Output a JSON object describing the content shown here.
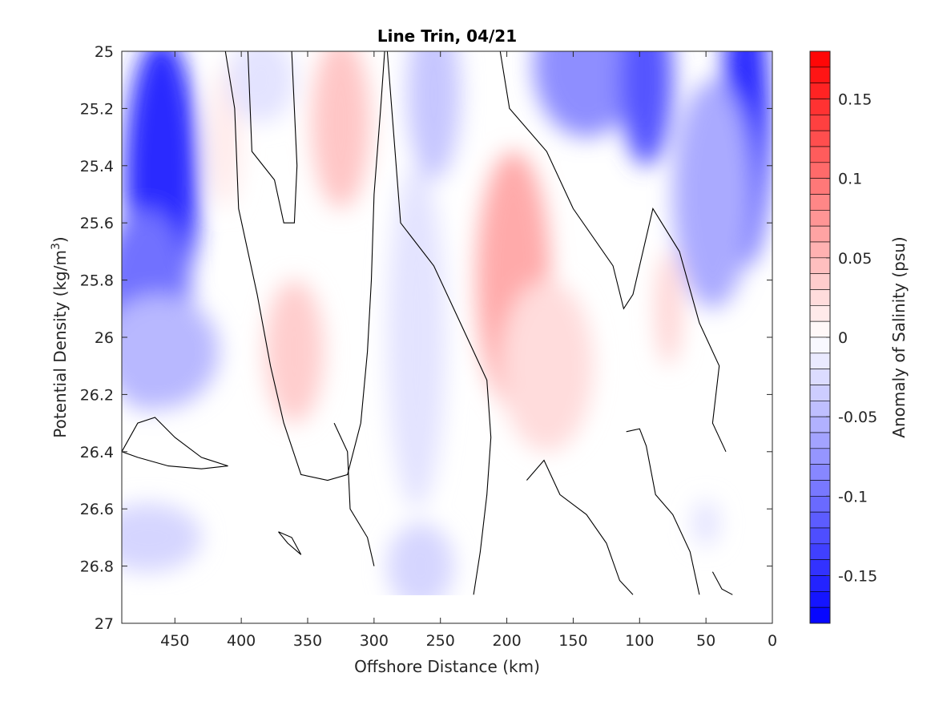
{
  "chart_data": {
    "type": "heatmap",
    "title": "Line Trin, 04/21",
    "xlabel": "Offshore Distance (km)",
    "ylabel": "Potential Density (kg/m",
    "ylabel_sup": "3",
    "ylabel_close": ")",
    "xlim": [
      490,
      0
    ],
    "ylim": [
      25,
      27
    ],
    "x_ticks": [
      450,
      400,
      350,
      300,
      250,
      200,
      150,
      100,
      50,
      0
    ],
    "y_ticks": [
      25,
      25.2,
      25.4,
      25.6,
      25.8,
      26,
      26.2,
      26.4,
      26.6,
      26.8,
      27
    ],
    "y_tick_labels": [
      "25",
      "25.2",
      "25.4",
      "25.6",
      "25.8",
      "26",
      "26.2",
      "26.4",
      "26.6",
      "26.8",
      "27"
    ],
    "colorbar": {
      "label": "Anomaly of Salinity (psu)",
      "range": [
        -0.18,
        0.18
      ],
      "levels": 36,
      "ticks": [
        0.15,
        0.1,
        0.05,
        0,
        -0.05,
        -0.1,
        -0.15
      ],
      "tick_labels": [
        "0.15",
        "0.1",
        "0.05",
        "0",
        "-0.05",
        "-0.1",
        "-0.15"
      ],
      "colors": {
        "negative": "#0000ff",
        "zero": "#ffffff",
        "positive": "#ff0000"
      }
    },
    "anomaly_features": [
      {
        "x": 460,
        "y": 25.45,
        "value": -0.15,
        "rx": 28,
        "ry": 0.5
      },
      {
        "x": 472,
        "y": 25.9,
        "value": -0.1,
        "rx": 35,
        "ry": 0.35
      },
      {
        "x": 462,
        "y": 26.05,
        "value": -0.05,
        "rx": 45,
        "ry": 0.2
      },
      {
        "x": 470,
        "y": 26.7,
        "value": -0.03,
        "rx": 40,
        "ry": 0.12
      },
      {
        "x": 412,
        "y": 25.3,
        "value": 0.015,
        "rx": 12,
        "ry": 0.25
      },
      {
        "x": 385,
        "y": 25.1,
        "value": -0.02,
        "rx": 25,
        "ry": 0.15
      },
      {
        "x": 325,
        "y": 25.25,
        "value": 0.04,
        "rx": 22,
        "ry": 0.3
      },
      {
        "x": 360,
        "y": 26.05,
        "value": 0.035,
        "rx": 22,
        "ry": 0.25
      },
      {
        "x": 255,
        "y": 25.15,
        "value": -0.04,
        "rx": 20,
        "ry": 0.3
      },
      {
        "x": 268,
        "y": 26.0,
        "value": -0.02,
        "rx": 22,
        "ry": 0.6
      },
      {
        "x": 265,
        "y": 26.8,
        "value": -0.03,
        "rx": 25,
        "ry": 0.15
      },
      {
        "x": 195,
        "y": 25.8,
        "value": 0.06,
        "rx": 28,
        "ry": 0.45
      },
      {
        "x": 170,
        "y": 26.1,
        "value": 0.025,
        "rx": 35,
        "ry": 0.3
      },
      {
        "x": 140,
        "y": 25.05,
        "value": -0.08,
        "rx": 40,
        "ry": 0.25
      },
      {
        "x": 95,
        "y": 25.1,
        "value": -0.12,
        "rx": 20,
        "ry": 0.3
      },
      {
        "x": 78,
        "y": 25.9,
        "value": 0.03,
        "rx": 10,
        "ry": 0.2
      },
      {
        "x": 20,
        "y": 25.25,
        "value": -0.15,
        "rx": 18,
        "ry": 0.5
      },
      {
        "x": 45,
        "y": 25.5,
        "value": -0.06,
        "rx": 30,
        "ry": 0.4
      },
      {
        "x": 50,
        "y": 26.65,
        "value": -0.02,
        "rx": 10,
        "ry": 0.08
      }
    ],
    "contours_zero": [
      [
        [
          412,
          25
        ],
        [
          405,
          25.2
        ],
        [
          402,
          25.55
        ],
        [
          388,
          25.85
        ],
        [
          378,
          26.1
        ],
        [
          368,
          26.3
        ],
        [
          355,
          26.48
        ],
        [
          335,
          26.5
        ],
        [
          320,
          26.48
        ],
        [
          310,
          26.3
        ],
        [
          305,
          26.05
        ],
        [
          302,
          25.8
        ],
        [
          300,
          25.5
        ],
        [
          295,
          25.2
        ],
        [
          292,
          25
        ]
      ],
      [
        [
          395,
          25
        ],
        [
          392,
          25.35
        ],
        [
          375,
          25.45
        ],
        [
          368,
          25.6
        ],
        [
          360,
          25.6
        ],
        [
          358,
          25.4
        ],
        [
          362,
          25
        ]
      ],
      [
        [
          290,
          25
        ],
        [
          285,
          25.3
        ],
        [
          280,
          25.6
        ],
        [
          255,
          25.75
        ],
        [
          235,
          25.95
        ],
        [
          215,
          26.15
        ],
        [
          212,
          26.35
        ],
        [
          215,
          26.55
        ],
        [
          220,
          26.75
        ],
        [
          225,
          26.9
        ]
      ],
      [
        [
          205,
          25
        ],
        [
          198,
          25.2
        ],
        [
          170,
          25.35
        ],
        [
          150,
          25.55
        ],
        [
          120,
          25.75
        ],
        [
          112,
          25.9
        ],
        [
          105,
          25.85
        ],
        [
          90,
          25.55
        ],
        [
          70,
          25.7
        ],
        [
          55,
          25.95
        ],
        [
          40,
          26.1
        ],
        [
          45,
          26.3
        ],
        [
          35,
          26.4
        ]
      ],
      [
        [
          490,
          26.4
        ],
        [
          478,
          26.3
        ],
        [
          465,
          26.28
        ],
        [
          450,
          26.35
        ],
        [
          430,
          26.42
        ],
        [
          410,
          26.45
        ],
        [
          430,
          26.46
        ],
        [
          455,
          26.45
        ],
        [
          478,
          26.42
        ],
        [
          490,
          26.4
        ]
      ],
      [
        [
          330,
          26.3
        ],
        [
          320,
          26.4
        ],
        [
          318,
          26.6
        ],
        [
          305,
          26.7
        ],
        [
          300,
          26.8
        ]
      ],
      [
        [
          185,
          26.5
        ],
        [
          172,
          26.43
        ],
        [
          160,
          26.55
        ],
        [
          140,
          26.62
        ],
        [
          125,
          26.72
        ],
        [
          115,
          26.85
        ],
        [
          105,
          26.9
        ]
      ],
      [
        [
          110,
          26.33
        ],
        [
          100,
          26.32
        ],
        [
          95,
          26.38
        ],
        [
          88,
          26.55
        ],
        [
          75,
          26.62
        ],
        [
          62,
          26.75
        ],
        [
          55,
          26.9
        ]
      ],
      [
        [
          372,
          26.68
        ],
        [
          365,
          26.72
        ],
        [
          355,
          26.76
        ],
        [
          362,
          26.7
        ],
        [
          372,
          26.68
        ]
      ],
      [
        [
          45,
          26.82
        ],
        [
          38,
          26.88
        ],
        [
          30,
          26.9
        ]
      ]
    ]
  }
}
